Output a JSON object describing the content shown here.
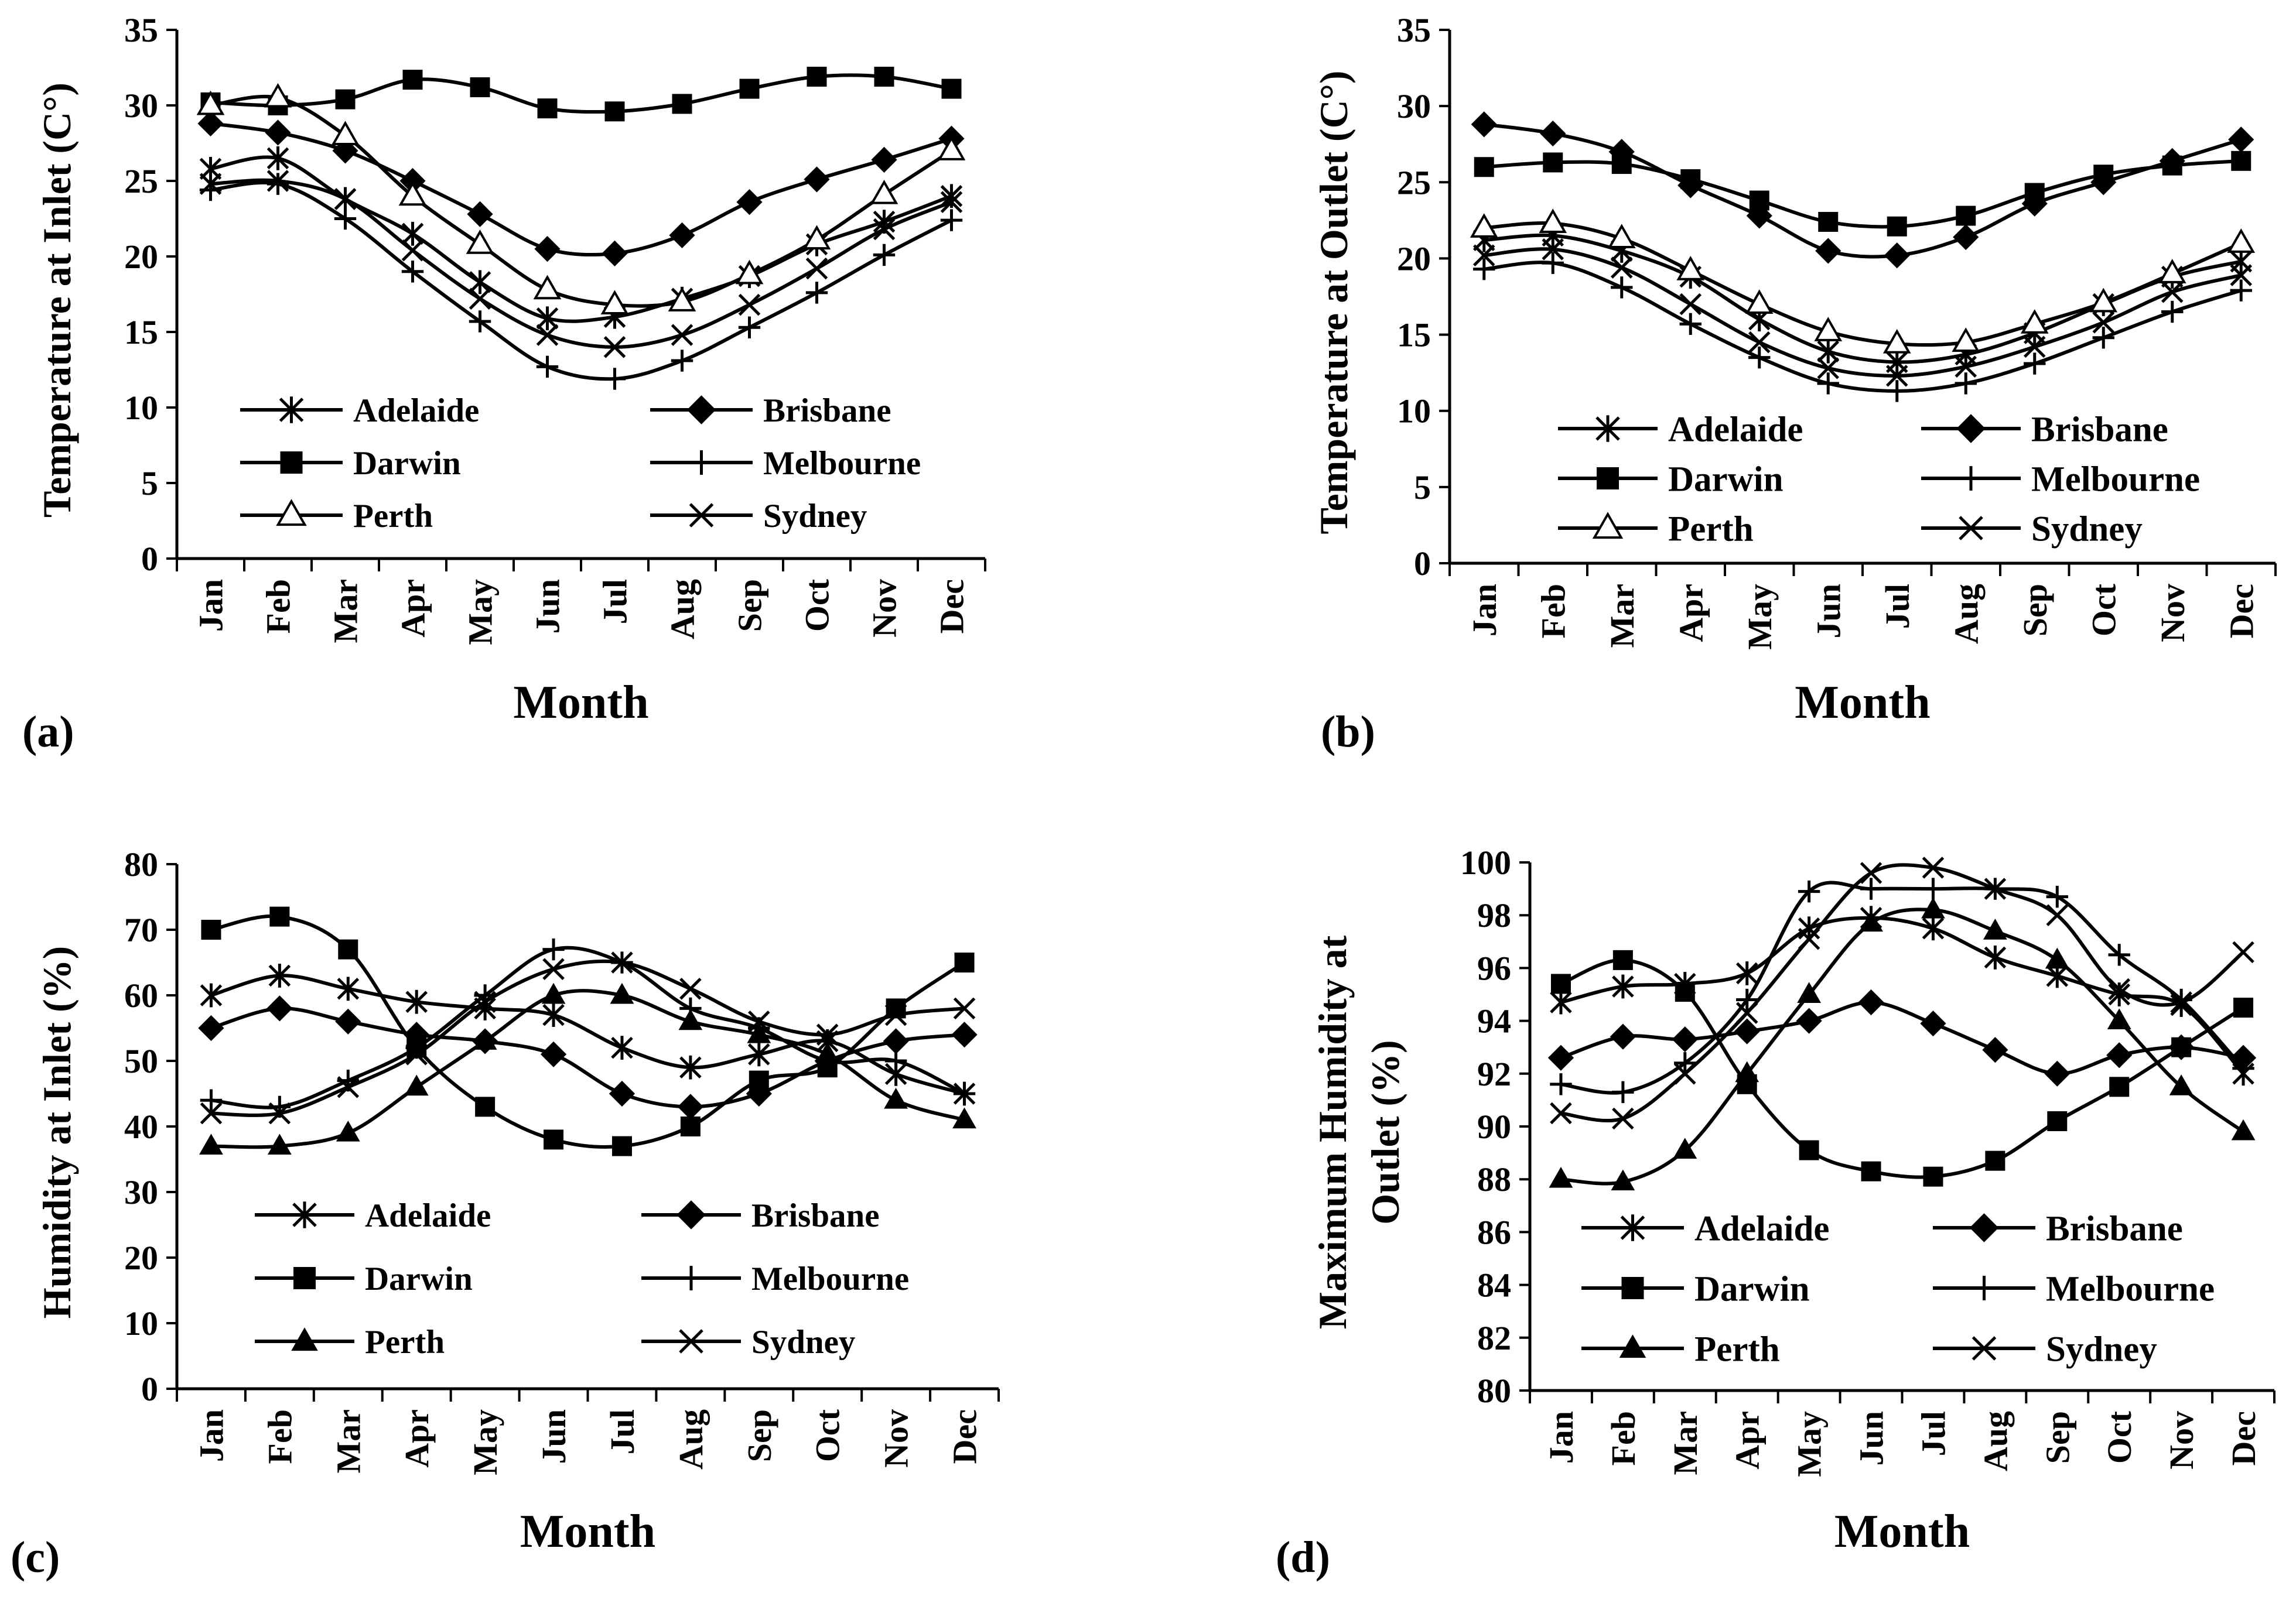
{
  "months": [
    "Jan",
    "Feb",
    "Mar",
    "Apr",
    "May",
    "Jun",
    "Jul",
    "Aug",
    "Sep",
    "Oct",
    "Nov",
    "Dec"
  ],
  "colors": {
    "line": "#000000",
    "background": "#ffffff"
  },
  "chart_data": [
    {
      "type": "line",
      "panel_label": "(a)",
      "xlabel": "Month",
      "ylabel": "Temperature at Inlet (C°)",
      "ylim": [
        0,
        35
      ],
      "ytick_step": 5,
      "ytick_labels": [
        "0",
        "5",
        "10",
        "15",
        "20",
        "25",
        "30",
        "35"
      ],
      "legend": {
        "columns": 2,
        "placement": "lower-center"
      },
      "series": [
        {
          "name": "Adelaide",
          "marker": "asterisk",
          "values": [
            25.8,
            26.5,
            23.8,
            21.5,
            18.3,
            15.9,
            16.0,
            17.2,
            18.7,
            20.8,
            22.3,
            24.0
          ]
        },
        {
          "name": "Brisbane",
          "marker": "diamond",
          "values": [
            28.8,
            28.2,
            27.0,
            25.0,
            22.8,
            20.5,
            20.2,
            21.4,
            23.6,
            25.1,
            26.4,
            27.8
          ]
        },
        {
          "name": "Darwin",
          "marker": "square",
          "values": [
            30.2,
            30.0,
            30.4,
            31.7,
            31.2,
            29.8,
            29.6,
            30.1,
            31.1,
            31.9,
            31.9,
            31.1
          ]
        },
        {
          "name": "Melbourne",
          "marker": "plus",
          "values": [
            24.4,
            24.8,
            22.5,
            19.0,
            15.7,
            12.7,
            11.9,
            13.1,
            15.3,
            17.6,
            20.1,
            22.4
          ]
        },
        {
          "name": "Perth",
          "marker": "triangle-open",
          "values": [
            30.0,
            30.5,
            28.0,
            24.0,
            20.8,
            17.8,
            16.8,
            17.0,
            18.8,
            21.1,
            24.1,
            27.0
          ]
        },
        {
          "name": "Sydney",
          "marker": "x",
          "values": [
            24.8,
            25.0,
            23.8,
            20.4,
            17.2,
            14.8,
            14.0,
            14.8,
            16.8,
            19.2,
            21.8,
            23.6
          ]
        }
      ]
    },
    {
      "type": "line",
      "panel_label": "(b)",
      "xlabel": "Month",
      "ylabel": "Temperature at Outlet (C°)",
      "ylim": [
        0,
        35
      ],
      "ytick_step": 5,
      "ytick_labels": [
        "0",
        "5",
        "10",
        "15",
        "20",
        "25",
        "30",
        "35"
      ],
      "legend": {
        "columns": 2,
        "placement": "lower-center"
      },
      "series": [
        {
          "name": "Adelaide",
          "marker": "asterisk",
          "values": [
            21.2,
            21.5,
            20.5,
            18.8,
            16.0,
            13.9,
            13.2,
            13.7,
            15.1,
            17.0,
            18.8,
            19.8
          ]
        },
        {
          "name": "Brisbane",
          "marker": "diamond",
          "values": [
            28.8,
            28.2,
            27.0,
            24.8,
            22.8,
            20.5,
            20.2,
            21.4,
            23.6,
            25.0,
            26.4,
            27.8
          ]
        },
        {
          "name": "Darwin",
          "marker": "square",
          "values": [
            26.0,
            26.3,
            26.2,
            25.2,
            23.8,
            22.4,
            22.1,
            22.8,
            24.3,
            25.5,
            26.1,
            26.4
          ]
        },
        {
          "name": "Melbourne",
          "marker": "plus",
          "values": [
            19.3,
            19.7,
            18.1,
            15.7,
            13.5,
            11.8,
            11.3,
            11.8,
            13.1,
            14.8,
            16.5,
            17.9
          ]
        },
        {
          "name": "Perth",
          "marker": "triangle-open",
          "values": [
            22.0,
            22.3,
            21.3,
            19.2,
            17.0,
            15.2,
            14.4,
            14.5,
            15.7,
            17.1,
            19.0,
            21.0
          ]
        },
        {
          "name": "Sydney",
          "marker": "x",
          "values": [
            20.2,
            20.6,
            19.4,
            17.0,
            14.5,
            12.8,
            12.3,
            12.9,
            14.2,
            15.8,
            17.8,
            18.9
          ]
        }
      ]
    },
    {
      "type": "line",
      "panel_label": "(c)",
      "xlabel": "Month",
      "ylabel": "Humidity at Inlet (%)",
      "ylim": [
        0,
        80
      ],
      "ytick_step": 10,
      "ytick_labels": [
        "0",
        "10",
        "20",
        "30",
        "40",
        "50",
        "60",
        "70",
        "80"
      ],
      "legend": {
        "columns": 2,
        "placement": "lower-center"
      },
      "series": [
        {
          "name": "Adelaide",
          "marker": "asterisk",
          "values": [
            60,
            63,
            61,
            59,
            58,
            57,
            52,
            49,
            51,
            53,
            48,
            45
          ]
        },
        {
          "name": "Brisbane",
          "marker": "diamond",
          "values": [
            55,
            58,
            56,
            54,
            53,
            51,
            45,
            43,
            45,
            50,
            53,
            54
          ]
        },
        {
          "name": "Darwin",
          "marker": "square",
          "values": [
            70,
            72,
            67,
            52,
            43,
            38,
            37,
            40,
            47,
            49,
            58,
            65
          ]
        },
        {
          "name": "Melbourne",
          "marker": "plus",
          "values": [
            44,
            43,
            47,
            52,
            60,
            67,
            65,
            58,
            55,
            50,
            50,
            45
          ]
        },
        {
          "name": "Perth",
          "marker": "triangle",
          "values": [
            37,
            37,
            39,
            46,
            53,
            60,
            60,
            56,
            54,
            51,
            44,
            41
          ]
        },
        {
          "name": "Sydney",
          "marker": "x",
          "values": [
            42,
            42,
            46,
            51,
            59,
            64,
            65,
            61,
            56,
            54,
            57,
            58
          ]
        }
      ]
    },
    {
      "type": "line",
      "panel_label": "(d)",
      "xlabel": "Month",
      "ylabel": [
        "Maximum Humidity at",
        "Outlet (%)"
      ],
      "ylim": [
        80,
        100
      ],
      "ytick_step": 2,
      "ytick_labels": [
        "80",
        "82",
        "84",
        "86",
        "88",
        "90",
        "92",
        "94",
        "96",
        "98",
        "100"
      ],
      "legend": {
        "columns": 2,
        "placement": "lower-center"
      },
      "series": [
        {
          "name": "Adelaide",
          "marker": "asterisk",
          "values": [
            94.7,
            95.3,
            95.4,
            95.8,
            97.5,
            97.9,
            97.5,
            96.4,
            95.7,
            95.0,
            94.6,
            92.0
          ]
        },
        {
          "name": "Brisbane",
          "marker": "diamond",
          "values": [
            92.6,
            93.4,
            93.3,
            93.6,
            94.0,
            94.7,
            93.9,
            92.9,
            92.0,
            92.7,
            93.0,
            92.6
          ]
        },
        {
          "name": "Darwin",
          "marker": "square",
          "values": [
            95.4,
            96.3,
            95.1,
            91.6,
            89.1,
            88.3,
            88.1,
            88.7,
            90.2,
            91.5,
            93.0,
            94.5
          ]
        },
        {
          "name": "Melbourne",
          "marker": "plus",
          "values": [
            91.6,
            91.3,
            92.4,
            94.8,
            98.9,
            99.0,
            99.0,
            99.0,
            98.7,
            96.5,
            94.8,
            92.2
          ]
        },
        {
          "name": "Perth",
          "marker": "triangle",
          "values": [
            88.0,
            87.9,
            89.1,
            92.0,
            95.0,
            97.7,
            98.2,
            97.4,
            96.3,
            94.0,
            91.5,
            89.8
          ]
        },
        {
          "name": "Sydney",
          "marker": "x",
          "values": [
            90.5,
            90.3,
            92.0,
            94.3,
            97.1,
            99.6,
            99.8,
            99.0,
            98.0,
            95.2,
            94.7,
            96.6
          ]
        }
      ]
    }
  ]
}
